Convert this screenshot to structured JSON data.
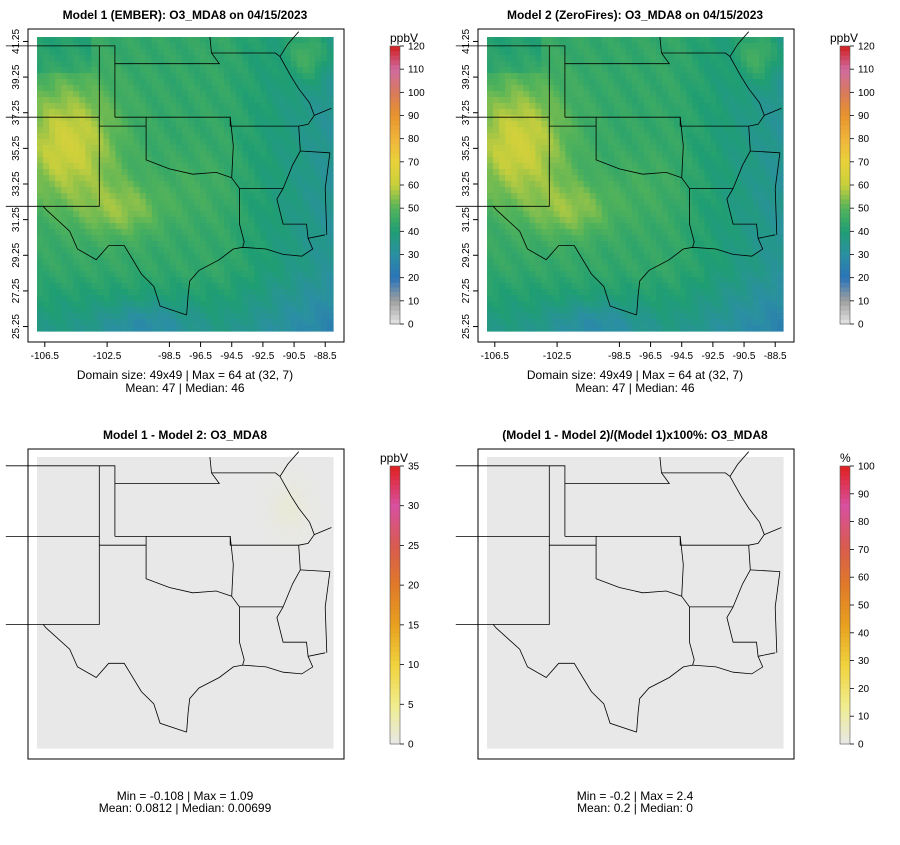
{
  "chart_data": [
    {
      "type": "heatmap",
      "title": "Model 1 (EMBER): O3_MDA8 on 04/15/2023",
      "unit": "ppbV",
      "colorbar_ticks": [
        "0",
        "10",
        "20",
        "30",
        "40",
        "50",
        "60",
        "70",
        "80",
        "90",
        "100",
        "110",
        "120"
      ],
      "colorbar_range": [
        0,
        120
      ],
      "x_ticks": [
        "-106.5",
        "-102.5",
        "-98.5",
        "-96.5",
        "-94.5",
        "-92.5",
        "-90.5",
        "-88.5"
      ],
      "y_ticks": [
        "25.25",
        "27.25",
        "29.25",
        "31.25",
        "33.25",
        "35.25",
        "37.25",
        "39.25",
        "41.25"
      ],
      "stats_line1": "Domain size: 49x49 | Max = 64 at (32, 7)",
      "stats_line2": "Mean: 47 |  Median: 46",
      "field": "ozone"
    },
    {
      "type": "heatmap",
      "title": "Model 2 (ZeroFires): O3_MDA8 on 04/15/2023",
      "unit": "ppbV",
      "colorbar_ticks": [
        "0",
        "10",
        "20",
        "30",
        "40",
        "50",
        "60",
        "70",
        "80",
        "90",
        "100",
        "110",
        "120"
      ],
      "colorbar_range": [
        0,
        120
      ],
      "x_ticks": [
        "-106.5",
        "-102.5",
        "-98.5",
        "-96.5",
        "-94.5",
        "-92.5",
        "-90.5",
        "-88.5"
      ],
      "y_ticks": [
        "25.25",
        "27.25",
        "29.25",
        "31.25",
        "33.25",
        "35.25",
        "37.25",
        "39.25",
        "41.25"
      ],
      "stats_line1": "Domain size: 49x49 | Max = 64 at (32, 7)",
      "stats_line2": "Mean: 47 |  Median: 46",
      "field": "ozone"
    },
    {
      "type": "heatmap",
      "title": "Model 1 - Model 2: O3_MDA8",
      "unit": "ppbV",
      "colorbar_ticks": [
        "0",
        "5",
        "10",
        "15",
        "20",
        "25",
        "30",
        "35"
      ],
      "colorbar_range": [
        0,
        35
      ],
      "stats_line1": "Min = -0.108 | Max = 1.09",
      "stats_line2": "Mean: 0.0812 |  Median: 0.00699",
      "field": "diff"
    },
    {
      "type": "heatmap",
      "title": "(Model 1 - Model 2)/(Model 1)x100%: O3_MDA8",
      "unit": "%",
      "colorbar_ticks": [
        "0",
        "10",
        "20",
        "30",
        "40",
        "50",
        "60",
        "70",
        "80",
        "90",
        "100"
      ],
      "colorbar_range": [
        0,
        100
      ],
      "stats_line1": "Min = -0.2 | Max = 2.4",
      "stats_line2": "Mean: 0.2 |  Median: 0",
      "field": "diff"
    }
  ],
  "colors": {
    "ozone_scale": [
      "#e6e6e6",
      "#a0a0a0",
      "#2a73b8",
      "#2b8fa3",
      "#1f9e73",
      "#52b35a",
      "#c8cf3c",
      "#e8d23a",
      "#f0b43c",
      "#e8942c",
      "#d87a5c",
      "#d06aa0",
      "#d02020"
    ],
    "diff_scale": [
      "#e8e8e8",
      "#f0ec8c",
      "#f0d23c",
      "#e8a020",
      "#e07a28",
      "#d85a50",
      "#d850a0",
      "#e02020"
    ],
    "diff_fill": "#e8e8e8"
  }
}
